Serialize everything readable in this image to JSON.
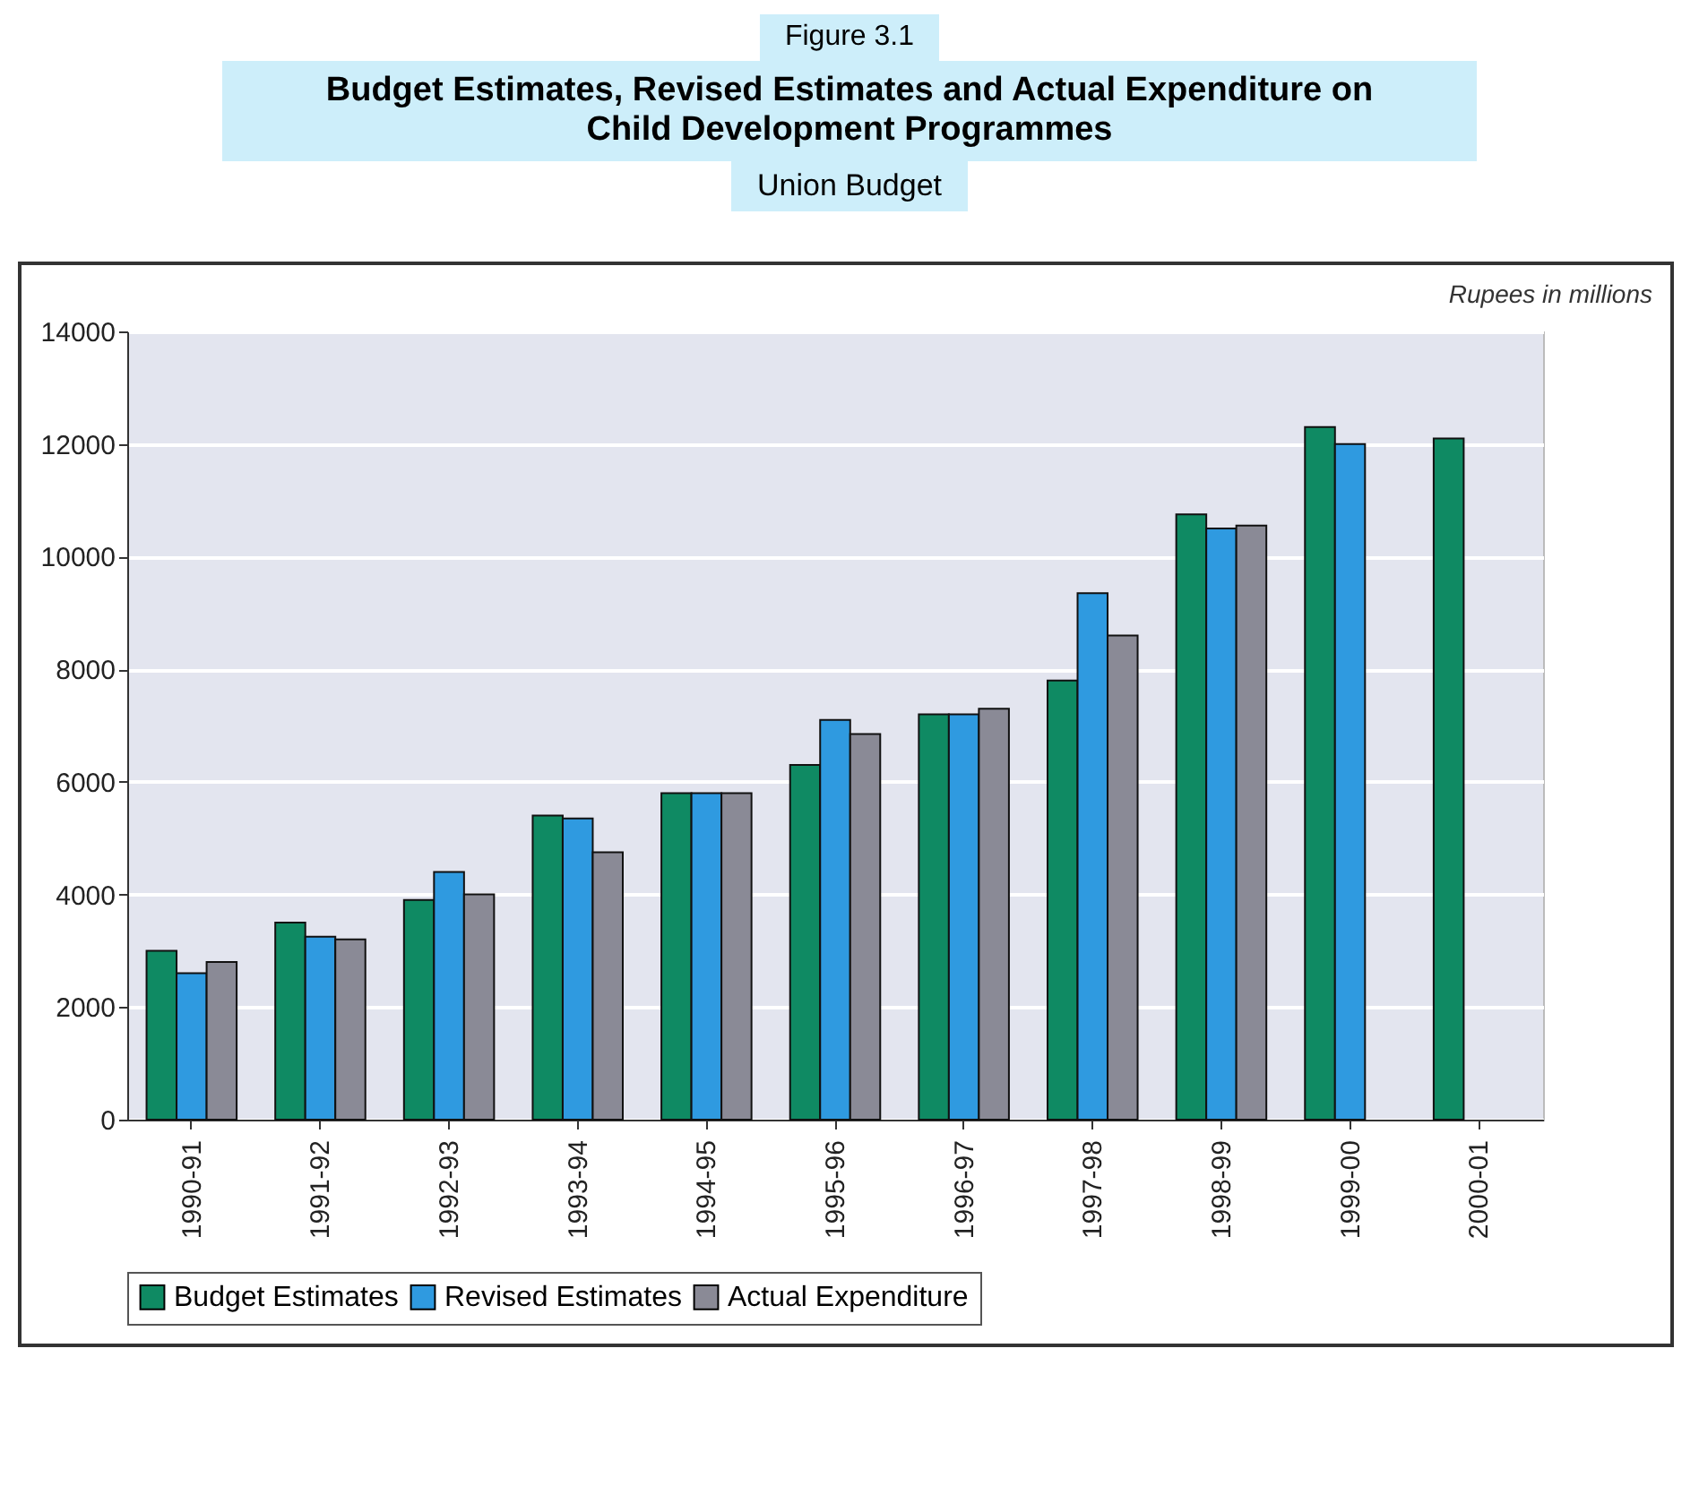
{
  "chart_data": {
    "type": "bar",
    "title": "Budget Estimates, Revised Estimates and Actual Expenditure on Child Development Programmes",
    "subtitle": "Union Budget",
    "annotations": [
      "Figure 3.1",
      "Rupees in millions"
    ],
    "categories": [
      "1990-91",
      "1991-92",
      "1992-93",
      "1993-94",
      "1994-95",
      "1995-96",
      "1996-97",
      "1997-98",
      "1998-99",
      "1999-00",
      "2000-01"
    ],
    "series": [
      {
        "name": "Budget Estimates",
        "color": "#0f8a63",
        "values": [
          3000,
          3500,
          3900,
          5400,
          5800,
          6300,
          7200,
          7800,
          10750,
          12300,
          12100
        ]
      },
      {
        "name": "Revised Estimates",
        "color": "#2f9ae0",
        "values": [
          2600,
          3250,
          4400,
          5350,
          5800,
          7100,
          7200,
          9350,
          10500,
          12000,
          null
        ]
      },
      {
        "name": "Actual Expenditure",
        "color": "#8a8a96",
        "values": [
          2800,
          3200,
          4000,
          4750,
          5800,
          6850,
          7300,
          8600,
          10550,
          null,
          null
        ]
      }
    ],
    "ylim": [
      0,
      14000
    ],
    "yticks": [
      0,
      2000,
      4000,
      6000,
      8000,
      10000,
      12000,
      14000
    ],
    "grid": "y",
    "legend": "bottom"
  }
}
